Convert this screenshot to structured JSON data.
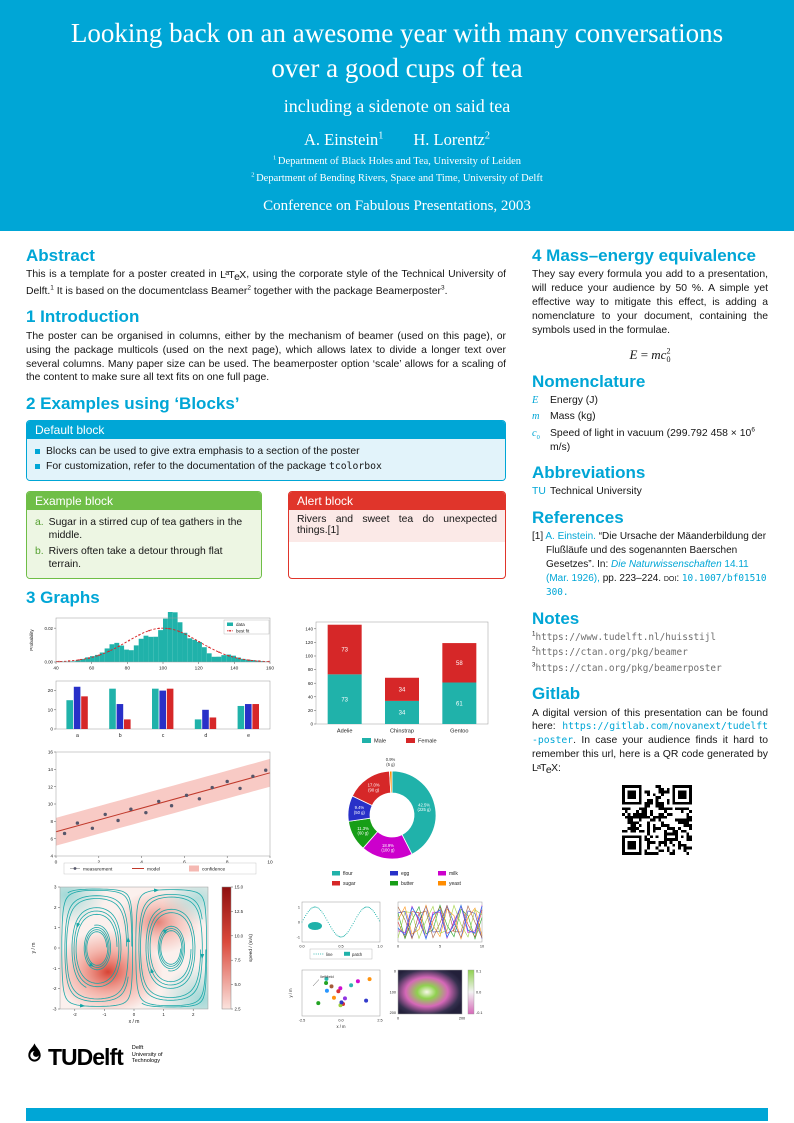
{
  "colors": {
    "accent": "#00A6D6",
    "teal": "#20B2AA",
    "red": "#D62728",
    "blue": "#2830C8",
    "green": "#179E17",
    "magenta": "#CC00CC",
    "orange": "#FF8C00",
    "example_green": "#6FBE47",
    "alert_red": "#E0352B",
    "palette": [
      "#D62728",
      "#2830C8",
      "#179E17",
      "#CC00CC",
      "#FF8C00",
      "#20B2AA",
      "#8A2BE2",
      "#A0522D",
      "#1E90FF",
      "#9ACD32"
    ]
  },
  "header": {
    "title": "Looking back on an awesome year with many conversations over a good cups of tea",
    "subtitle": "including a sidenote on said tea",
    "authors": [
      [
        {
          "t": "A. Einstein"
        },
        {
          "t": "1",
          "sup": true
        }
      ],
      [
        {
          "t": "H. Lorentz"
        },
        {
          "t": "2",
          "sup": true
        }
      ]
    ],
    "affiliations": [
      [
        {
          "t": "1 ",
          "sup": true
        },
        {
          "t": "Department of Black Holes and Tea, University of Leiden"
        }
      ],
      [
        {
          "t": "2 ",
          "sup": true
        },
        {
          "t": "Department of Bending Rivers, Space and Time, University of Delft"
        }
      ]
    ],
    "conference": "Conference on Fabulous Presentations, 2003"
  },
  "abstract": {
    "heading": "Abstract",
    "text": [
      {
        "t": "This is a template for a poster created in "
      },
      {
        "t": "LaTeX",
        "latex": true
      },
      {
        "t": ", using the corporate style of the Technical University of Delft."
      },
      {
        "t": "1",
        "sup": true
      },
      {
        "t": " It is based on the documentclass Beamer"
      },
      {
        "t": "2",
        "sup": true
      },
      {
        "t": " together with the package Beamerposter"
      },
      {
        "t": "3",
        "sup": true
      },
      {
        "t": "."
      }
    ]
  },
  "introduction": {
    "heading": "1 Introduction",
    "text": "The poster can be organised in columns, either by the mechanism of beamer (used on this page), or using the package multicols (used on the next page), which allows latex to divide a longer text over several columns. Many paper size can be used. The beamerposter option ‘scale’ allows for a scaling of the content to make sure all text fits on one full page."
  },
  "examples": {
    "heading": "2 Examples using ‘Blocks’"
  },
  "blocks": {
    "default": {
      "title": "Default block",
      "bullets": [
        [
          {
            "t": "Blocks can be used to give extra emphasis to a section of the poster"
          }
        ],
        [
          {
            "t": "For customization, refer to the documentation of the package "
          },
          {
            "t": "tcolorbox",
            "mono": true
          }
        ]
      ]
    },
    "example": {
      "title": "Example block",
      "items": [
        {
          "label": "a.",
          "text": "Sugar in a stirred cup of tea gathers in the middle."
        },
        {
          "label": "b.",
          "text": "Rivers often take a detour through flat terrain."
        }
      ]
    },
    "alert": {
      "title": "Alert block",
      "text": [
        {
          "t": "Rivers and sweet tea do unexpected things."
        },
        {
          "t": "[1]"
        }
      ]
    }
  },
  "graphs": {
    "heading": "3 Graphs"
  },
  "right": {
    "mass_energy": {
      "heading": "4 Mass–energy equivalence",
      "text": "They say every formula you add to a presentation, will reduce your audience by 50 %. A simple yet effective way to mitigate this effect, is adding a nomenclature to your document, containing the symbols used in the formulae.",
      "formula": [
        {
          "t": "E",
          "italic": true,
          "serif": true
        },
        {
          "t": " = ",
          "serif": true
        },
        {
          "t": "mc",
          "italic": true,
          "serif": true
        },
        {
          "t": "2",
          "sup": true,
          "serif": true
        },
        {
          "t": "0",
          "sub": true,
          "serif": true
        }
      ]
    },
    "nomenclature": {
      "heading": "Nomenclature",
      "entries": [
        {
          "symbol": [
            {
              "t": "E",
              "italic": true,
              "serif": true,
              "accent": true
            }
          ],
          "text": [
            {
              "t": "Energy (J)"
            }
          ]
        },
        {
          "symbol": [
            {
              "t": "m",
              "italic": true,
              "serif": true,
              "accent": true
            }
          ],
          "text": [
            {
              "t": "Mass (kg)"
            }
          ]
        },
        {
          "symbol": [
            {
              "t": "c",
              "italic": true,
              "serif": true,
              "accent": true
            },
            {
              "t": "0",
              "sub": true,
              "serif": true,
              "accent": true
            }
          ],
          "text": [
            {
              "t": "Speed of light in vacuum (299.792 458 × 10"
            },
            {
              "t": "6",
              "sup": true
            },
            {
              "t": " m/s)"
            }
          ]
        }
      ]
    },
    "abbreviations": {
      "heading": "Abbreviations",
      "entries": [
        {
          "abbr": "TU",
          "text": "Technical University"
        }
      ]
    },
    "references": {
      "heading": "References",
      "items": [
        [
          {
            "t": "[1]  "
          },
          {
            "t": "A. Einstein. ",
            "accent": true
          },
          {
            "t": "“Die Ursache der Mäanderbildung der Flußläufe und des sogenannten Baerschen Gesetzes”. In: "
          },
          {
            "t": "Die Naturwissenschaften",
            "italic": true,
            "accent": true
          },
          {
            "t": " 14.11 (Mar. 1926),",
            "accent": true
          },
          {
            "t": " pp. 223–224. "
          },
          {
            "t": "doi:",
            "sc": true
          },
          {
            "t": " "
          },
          {
            "t": "10.1007/bf01510300.",
            "mono": true,
            "accent": true
          }
        ]
      ]
    },
    "notes": {
      "heading": "Notes",
      "items": [
        [
          {
            "t": "1",
            "sup": true
          },
          {
            "t": "https://www.tudelft.nl/huisstijl",
            "mono": true,
            "muted": true
          }
        ],
        [
          {
            "t": "2",
            "sup": true
          },
          {
            "t": "https://ctan.org/pkg/beamer",
            "mono": true,
            "muted": true
          }
        ],
        [
          {
            "t": "3",
            "sup": true
          },
          {
            "t": "https://ctan.org/pkg/beamerposter",
            "mono": true,
            "muted": true
          }
        ]
      ]
    },
    "gitlab": {
      "heading": "Gitlab",
      "text": [
        {
          "t": "A digital version of this presentation can be found here: "
        },
        {
          "t": "https://gitlab.com/novanext/tudelft-poster",
          "mono": true,
          "accent": true
        },
        {
          "t": ". In case your audience finds it hard to remember this url, here is a QR code generated by "
        },
        {
          "t": "LaTeX",
          "latex": true
        },
        {
          "t": ":"
        }
      ]
    }
  },
  "footer": {
    "logo_text": "TUDelft",
    "logo_sub_lines": [
      "Delft",
      "University of",
      "Technology"
    ]
  },
  "chart_data": [
    {
      "id": "histogram",
      "type": "bar",
      "subtype": "histogram-with-fit",
      "ylabel": "Probability",
      "x_ticks": [
        40,
        60,
        80,
        100,
        120,
        140,
        160
      ],
      "y_ticks": [
        "0.00",
        "0.02"
      ],
      "distribution": {
        "mean": 100,
        "sigma": 20,
        "peak": 0.02,
        "bins": 44,
        "range": [
          40,
          160
        ]
      },
      "legend": [
        {
          "label": "data",
          "color": "#20B2AA"
        },
        {
          "label": "best fit",
          "color": "#D62728"
        }
      ]
    },
    {
      "id": "grouped-bar",
      "type": "bar",
      "categories": [
        "a",
        "b",
        "c",
        "d",
        "e"
      ],
      "series": [
        {
          "color": "#20B2AA",
          "values": [
            15,
            21,
            21,
            5,
            12
          ]
        },
        {
          "color": "#2830C8",
          "values": [
            22,
            13,
            20,
            10,
            13
          ]
        },
        {
          "color": "#D62728",
          "values": [
            17,
            5,
            21,
            6,
            13
          ]
        }
      ],
      "y_ticks": [
        0,
        10,
        20
      ],
      "ylim": [
        0,
        25
      ]
    },
    {
      "id": "stacked-bar",
      "type": "stacked-bar",
      "categories": [
        "Adelie",
        "Chinstrap",
        "Gentoo"
      ],
      "series": [
        {
          "name": "Male",
          "color": "#20B2AA",
          "values": [
            73,
            34,
            61
          ]
        },
        {
          "name": "Female",
          "color": "#D62728",
          "values": [
            73,
            34,
            58
          ]
        }
      ],
      "y_ticks": [
        0,
        20,
        40,
        60,
        80,
        100,
        120,
        140
      ],
      "ylim": [
        0,
        150
      ]
    },
    {
      "id": "regression",
      "type": "scatter",
      "x": [
        0.4,
        1.0,
        1.7,
        2.3,
        2.9,
        3.5,
        4.2,
        4.8,
        5.4,
        6.1,
        6.7,
        7.3,
        8.0,
        8.6,
        9.2,
        9.8
      ],
      "y": [
        6.6,
        7.8,
        7.2,
        8.8,
        8.1,
        9.4,
        9.0,
        10.3,
        9.8,
        11.0,
        10.6,
        11.9,
        12.6,
        11.8,
        13.2,
        13.9
      ],
      "model": {
        "intercept": 6.8,
        "slope": 0.68
      },
      "confidence": 1.6,
      "x_ticks": [
        0,
        2,
        4,
        6,
        8,
        10
      ],
      "y_ticks": [
        4,
        6,
        8,
        10,
        12,
        14,
        16
      ],
      "legend": [
        {
          "label": "measurement",
          "color": "#55566A"
        },
        {
          "label": "model",
          "color": "#C0392B"
        },
        {
          "label": "confidence",
          "color": "#F5B8B2"
        }
      ]
    },
    {
      "id": "donut",
      "type": "pie",
      "slices": [
        {
          "label": "flour",
          "color": "#20B2AA",
          "pct": 42.5,
          "amount": "225 g"
        },
        {
          "label": "milk",
          "color": "#CC00CC",
          "pct": 18.9,
          "amount": "100 g"
        },
        {
          "label": "butter",
          "color": "#179E17",
          "pct": 11.3,
          "amount": "60 g"
        },
        {
          "label": "egg",
          "color": "#2830C8",
          "pct": 9.4,
          "amount": "50 g"
        },
        {
          "label": "sugar",
          "color": "#D62728",
          "pct": 17.0,
          "amount": "90 g"
        },
        {
          "label": "yeast",
          "color": "#FF8C00",
          "pct": 0.9,
          "amount": "5 g"
        }
      ],
      "legend": [
        "flour",
        "egg",
        "milk",
        "sugar",
        "butter",
        "yeast"
      ]
    },
    {
      "id": "stream",
      "type": "stream",
      "xlabel": "x / m",
      "ylabel": "y / m",
      "x_ticks": [
        -2,
        -1,
        0,
        1,
        2
      ],
      "y_ticks": [
        -3,
        -2,
        -1,
        0,
        1,
        2,
        3
      ],
      "xlim": [
        -2.5,
        2.5
      ],
      "ylim": [
        -3,
        3
      ],
      "colorbar": {
        "label": "speed / (m/s)",
        "ticks": [
          2.5,
          5.0,
          7.5,
          10.0,
          12.5,
          15.0
        ]
      }
    },
    {
      "id": "multiples",
      "type": "grid",
      "plots": [
        {
          "id": "line-patch",
          "legend": [
            "line",
            "patch"
          ],
          "x_ticks": [
            "0.0",
            "0.5",
            "1.0"
          ],
          "y_ticks": [
            -1,
            0,
            1
          ]
        },
        {
          "id": "mesh",
          "x_ticks": [
            0,
            5,
            10
          ]
        },
        {
          "id": "field-scatter",
          "annotation": "\\leftfield",
          "xlabel": "x / m",
          "ylabel": "y / m",
          "x_ticks": [
            "-2.5",
            "0.0",
            "2.5"
          ]
        },
        {
          "id": "heat-image",
          "x_ticks": [
            0,
            200
          ],
          "y_ticks": [
            0,
            100,
            200
          ],
          "colorbar_ticks": [
            "0.1",
            "0.0",
            "-0.1"
          ]
        }
      ]
    }
  ]
}
